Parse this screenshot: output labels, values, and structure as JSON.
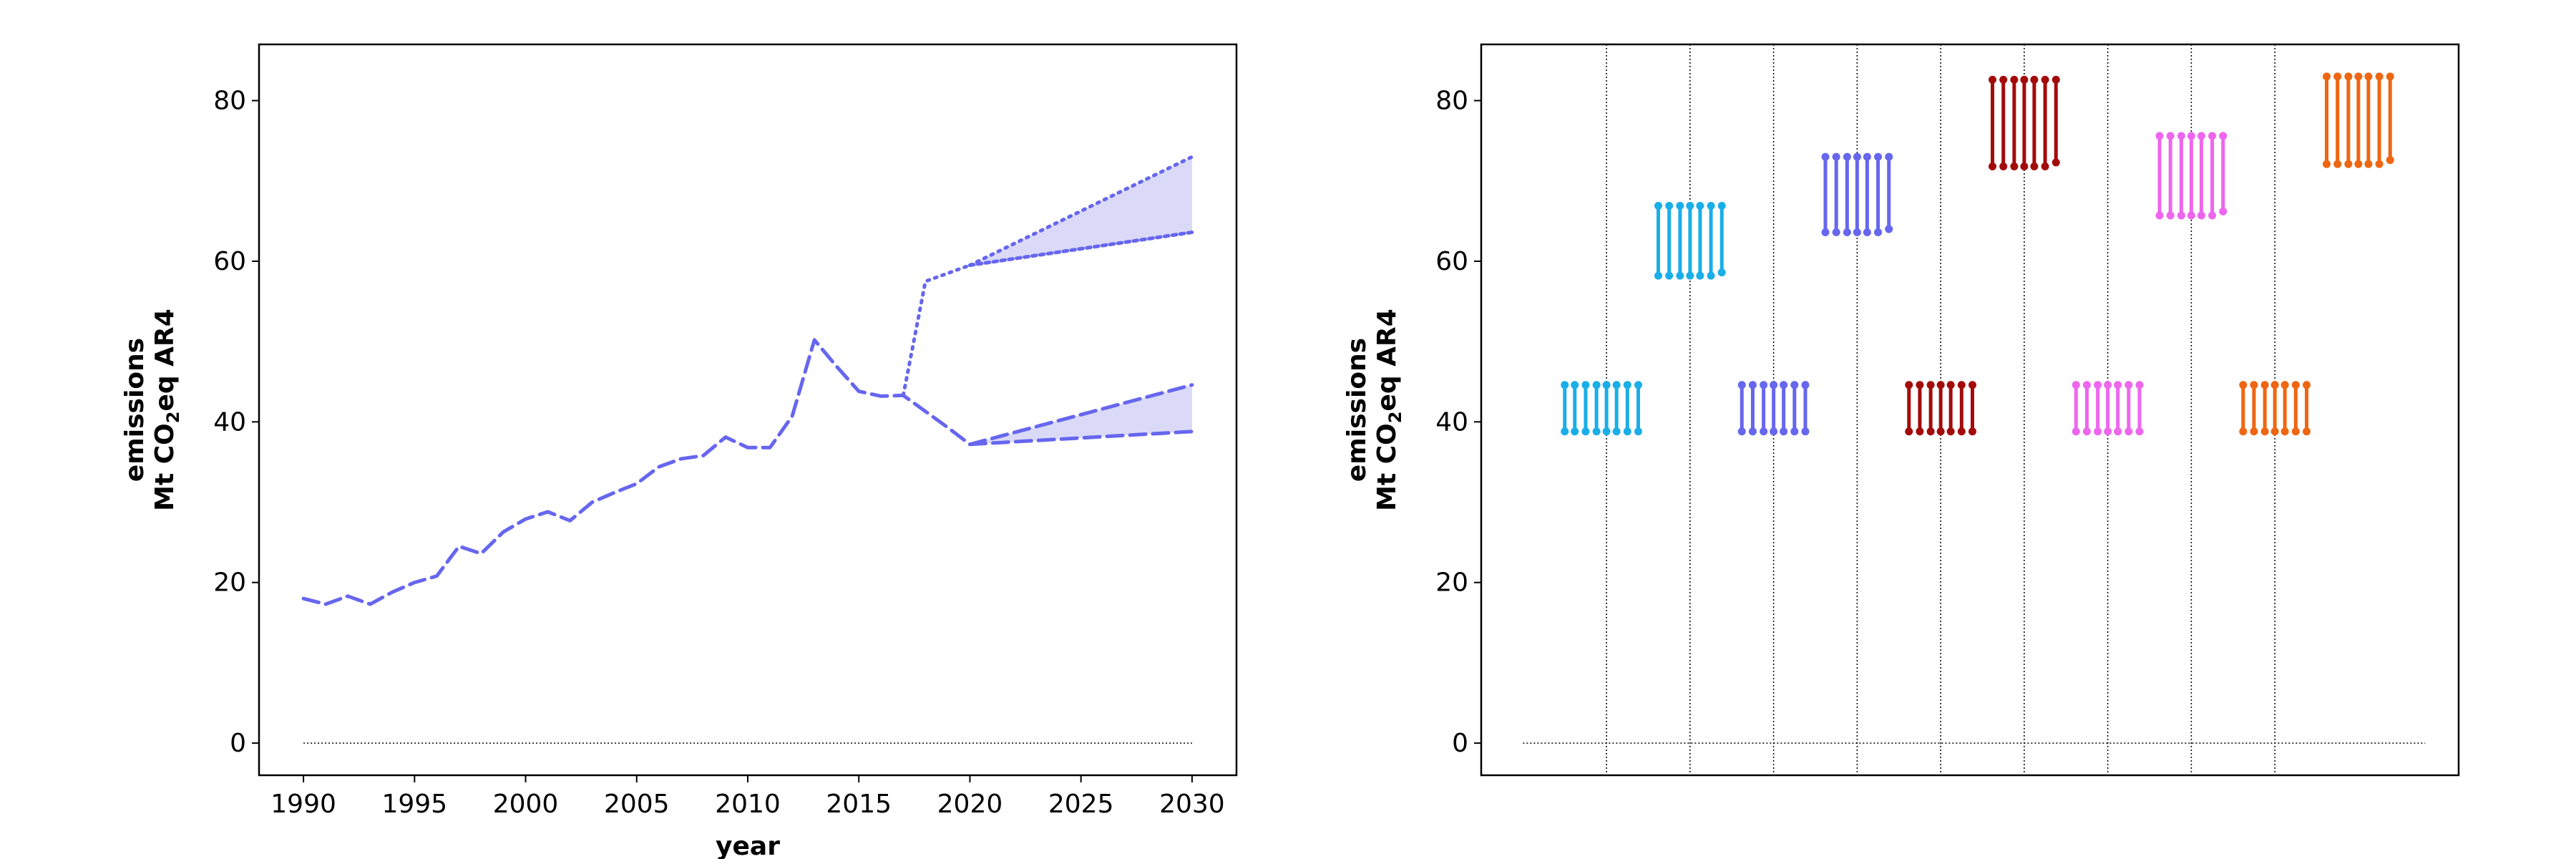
{
  "chart_data": [
    {
      "type": "line",
      "xlabel": "year",
      "ylabel": {
        "line1": "emissions",
        "line2_pre": "Mt CO",
        "line2_sub": "2",
        "line2_post": "eq AR4"
      },
      "xlim": [
        1988,
        2032
      ],
      "ylim": [
        -4,
        87
      ],
      "xticks": [
        1990,
        1995,
        2000,
        2005,
        2010,
        2015,
        2020,
        2025,
        2030
      ],
      "yticks": [
        0,
        20,
        40,
        60,
        80
      ],
      "grid": false,
      "zero_line": {
        "x": [
          1990,
          2030
        ],
        "y": 0
      },
      "line_color": "#6666ee",
      "fill_color": "#dadaf8",
      "series": [
        {
          "style": "dashed",
          "x": [
            1990,
            1991,
            1992,
            1993,
            1994,
            1995,
            1996,
            1997,
            1998,
            1999,
            2000,
            2001,
            2002,
            2003,
            2004,
            2005,
            2006,
            2007,
            2008,
            2009,
            2010,
            2011,
            2012,
            2013,
            2014,
            2015,
            2016,
            2017,
            2018,
            2019,
            2020
          ],
          "y": [
            18.0,
            17.3,
            18.3,
            17.3,
            18.8,
            20.0,
            20.8,
            24.5,
            23.6,
            26.3,
            27.9,
            28.8,
            27.7,
            30.0,
            31.2,
            32.3,
            34.4,
            35.4,
            35.8,
            38.1,
            36.8,
            36.8,
            40.7,
            50.2,
            46.9,
            43.8,
            43.2,
            43.3,
            41.3,
            39.3,
            37.2
          ]
        },
        {
          "style": "dotted",
          "x": [
            2017,
            2018,
            2020,
            2030
          ],
          "y": [
            43.3,
            57.5,
            59.5,
            63.6
          ]
        }
      ],
      "projections": [
        {
          "style": "dashed",
          "x": [
            2020,
            2030
          ],
          "upper": [
            37.2,
            44.6
          ],
          "lower": [
            37.2,
            38.8
          ]
        },
        {
          "style": "dotted",
          "x": [
            2020,
            2030
          ],
          "upper": [
            59.5,
            73.0
          ],
          "lower": [
            59.5,
            63.6
          ]
        }
      ]
    },
    {
      "type": "range-bars",
      "ylabel": {
        "line1": "emissions",
        "line2_pre": "Mt CO",
        "line2_sub": "2",
        "line2_post": "eq AR4"
      },
      "xlim": [
        0,
        11.7
      ],
      "ylim": [
        -4,
        87
      ],
      "yticks": [
        0,
        20,
        40,
        60,
        80
      ],
      "separators": [
        1.5,
        2.5,
        3.5,
        4.5,
        5.5,
        6.5,
        7.5,
        8.5,
        9.5
      ],
      "zero_line": {
        "x": [
          0.5,
          11.3
        ],
        "y": 0
      },
      "groups": [
        {
          "color": "#1aaee8",
          "x": [
            1.0,
            1.12,
            1.25,
            1.38,
            1.5,
            1.62,
            1.75,
            1.88
          ],
          "top": [
            44.6,
            44.6,
            44.6,
            44.6,
            44.6,
            44.6,
            44.6,
            44.6
          ],
          "bottom": [
            38.8,
            38.8,
            38.8,
            38.8,
            38.8,
            38.8,
            38.8,
            38.8
          ]
        },
        {
          "color": "#1aaee8",
          "x": [
            2.12,
            2.25,
            2.38,
            2.5,
            2.62,
            2.75,
            2.88
          ],
          "top": [
            66.9,
            66.9,
            66.9,
            66.9,
            66.9,
            66.9,
            66.9
          ],
          "bottom": [
            58.2,
            58.2,
            58.2,
            58.2,
            58.2,
            58.2,
            58.6
          ]
        },
        {
          "color": "#6666ee",
          "x": [
            3.12,
            3.25,
            3.38,
            3.5,
            3.62,
            3.75,
            3.88
          ],
          "top": [
            44.6,
            44.6,
            44.6,
            44.6,
            44.6,
            44.6,
            44.6
          ],
          "bottom": [
            38.8,
            38.8,
            38.8,
            38.8,
            38.8,
            38.8,
            38.8
          ]
        },
        {
          "color": "#6666ee",
          "x": [
            4.12,
            4.25,
            4.38,
            4.5,
            4.62,
            4.75,
            4.88
          ],
          "top": [
            73.0,
            73.0,
            73.0,
            73.0,
            73.0,
            73.0,
            73.0
          ],
          "bottom": [
            63.6,
            63.6,
            63.6,
            63.6,
            63.6,
            63.6,
            64.0
          ]
        },
        {
          "color": "#a30b0b",
          "x": [
            5.12,
            5.25,
            5.38,
            5.5,
            5.62,
            5.75,
            5.88
          ],
          "top": [
            44.6,
            44.6,
            44.6,
            44.6,
            44.6,
            44.6,
            44.6
          ],
          "bottom": [
            38.8,
            38.8,
            38.8,
            38.8,
            38.8,
            38.8,
            38.8
          ]
        },
        {
          "color": "#a30b0b",
          "x": [
            6.12,
            6.25,
            6.38,
            6.5,
            6.62,
            6.75,
            6.88
          ],
          "top": [
            82.6,
            82.6,
            82.6,
            82.6,
            82.6,
            82.6,
            82.6
          ],
          "bottom": [
            71.8,
            71.8,
            71.8,
            71.8,
            71.8,
            71.8,
            72.3
          ]
        },
        {
          "color": "#ee66ee",
          "x": [
            7.12,
            7.25,
            7.38,
            7.5,
            7.62,
            7.75,
            7.88
          ],
          "top": [
            44.6,
            44.6,
            44.6,
            44.6,
            44.6,
            44.6,
            44.6
          ],
          "bottom": [
            38.8,
            38.8,
            38.8,
            38.8,
            38.8,
            38.8,
            38.8
          ]
        },
        {
          "color": "#ee66ee",
          "x": [
            8.12,
            8.25,
            8.38,
            8.5,
            8.62,
            8.75,
            8.88
          ],
          "top": [
            75.6,
            75.6,
            75.6,
            75.6,
            75.6,
            75.6,
            75.6
          ],
          "bottom": [
            65.7,
            65.7,
            65.7,
            65.7,
            65.7,
            65.7,
            66.2
          ]
        },
        {
          "color": "#ee6611",
          "x": [
            9.12,
            9.25,
            9.38,
            9.5,
            9.62,
            9.75,
            9.88
          ],
          "top": [
            44.6,
            44.6,
            44.6,
            44.6,
            44.6,
            44.6,
            44.6
          ],
          "bottom": [
            38.8,
            38.8,
            38.8,
            38.8,
            38.8,
            38.8,
            38.8
          ]
        },
        {
          "color": "#ee6611",
          "x": [
            10.12,
            10.25,
            10.38,
            10.5,
            10.62,
            10.75,
            10.88
          ],
          "top": [
            83.0,
            83.0,
            83.0,
            83.0,
            83.0,
            83.0,
            83.0
          ],
          "bottom": [
            72.1,
            72.1,
            72.1,
            72.1,
            72.1,
            72.1,
            72.6
          ]
        }
      ]
    }
  ]
}
